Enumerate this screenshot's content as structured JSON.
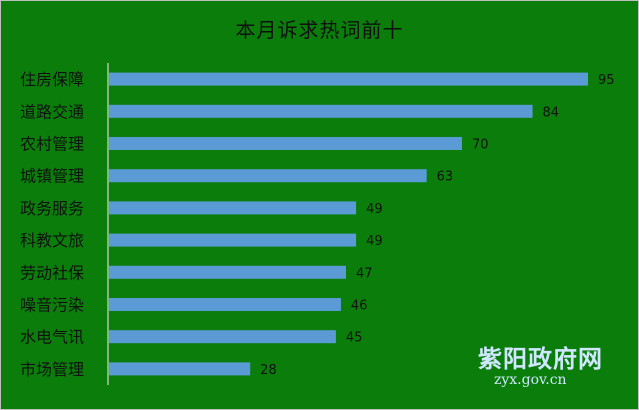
{
  "chart_data": {
    "type": "bar",
    "orientation": "horizontal",
    "title": "本月诉求热词前十",
    "categories": [
      "住房保障",
      "道路交通",
      "农村管理",
      "城镇管理",
      "政务服务",
      "科教文旅",
      "劳动社保",
      "噪音污染",
      "水电气讯",
      "市场管理"
    ],
    "values": [
      95,
      84,
      70,
      63,
      49,
      49,
      47,
      46,
      45,
      28
    ],
    "xlim": [
      0,
      100
    ],
    "grid": false,
    "bar_color": "#5b9bd5",
    "background_color": "#0b7d0b"
  },
  "watermark": {
    "name": "紫阳政府网",
    "url": "zyx.gov.cn"
  }
}
